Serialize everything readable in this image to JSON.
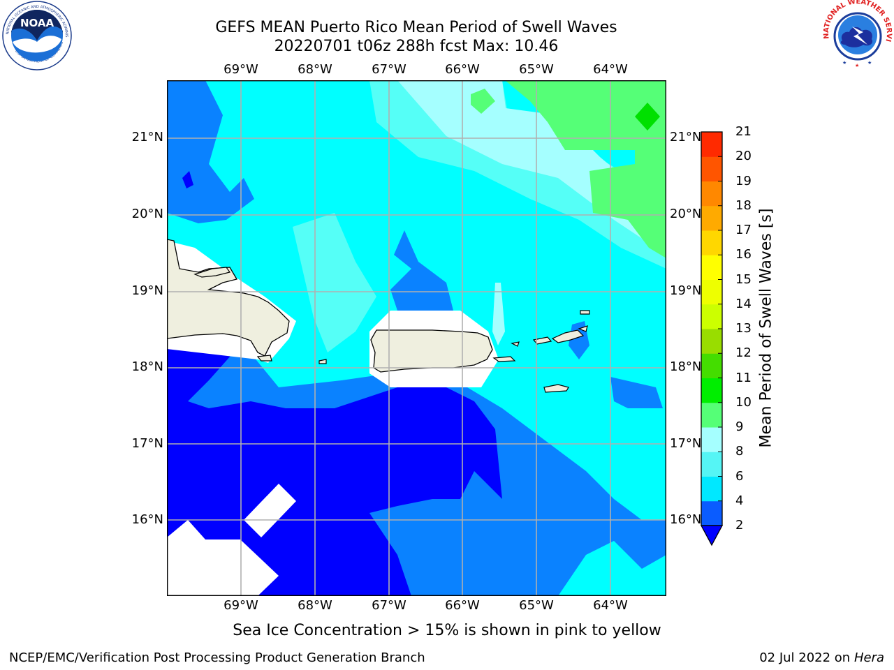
{
  "title_line1": "GEFS MEAN Puerto Rico Mean Period of Swell Waves",
  "title_line2": "20220701 t06z 288h fcst   Max: 10.46",
  "lon_labels": [
    "69°W",
    "68°W",
    "67°W",
    "66°W",
    "65°W",
    "64°W"
  ],
  "lat_labels": [
    "21°N",
    "20°N",
    "19°N",
    "18°N",
    "17°N",
    "16°N"
  ],
  "colorbar": {
    "label": "Mean Period of Swell Waves [s]",
    "ticks": [
      "2",
      "4",
      "6",
      "8",
      "9",
      "10",
      "11",
      "12",
      "13",
      "14",
      "15",
      "16",
      "17",
      "18",
      "19",
      "20",
      "21"
    ],
    "colors": [
      "#0a5cff",
      "#00e8ff",
      "#55f5f5",
      "#a5ffff",
      "#55ff77",
      "#00ee00",
      "#44dd00",
      "#99dd00",
      "#ccff00",
      "#eeff00",
      "#ffff00",
      "#ffd700",
      "#ffaa00",
      "#ff8800",
      "#ff5500",
      "#ff2a00"
    ],
    "extend_min_color": "#0000ff"
  },
  "map_palette": {
    "ocean_deep": "#0000ff",
    "ocean_2_4": "#0a82ff",
    "ocean_4_6": "#00ffff",
    "ocean_6_8": "#55fff7",
    "ocean_8_9": "#a5ffff",
    "ocean_9_10": "#55ff77",
    "ocean_10_11": "#00e000",
    "land": "#efefdf",
    "missing": "#ffffff"
  },
  "note": "Sea Ice Concentration > 15% is shown in pink to yellow",
  "footer_left": "NCEP/EMC/Verification Post Processing Product Generation Branch",
  "footer_right_date": "02 Jul 2022 on ",
  "footer_right_host": "Hera",
  "logos": {
    "noaa_text": "NOAA",
    "noaa_ring": "NATIONAL OCEANIC AND ATMOSPHERIC ADMINISTRATION",
    "noaa_ring_bottom": "U.S. DEPARTMENT OF COMMERCE",
    "nws_ring": "NATIONAL WEATHER SERVICE"
  }
}
